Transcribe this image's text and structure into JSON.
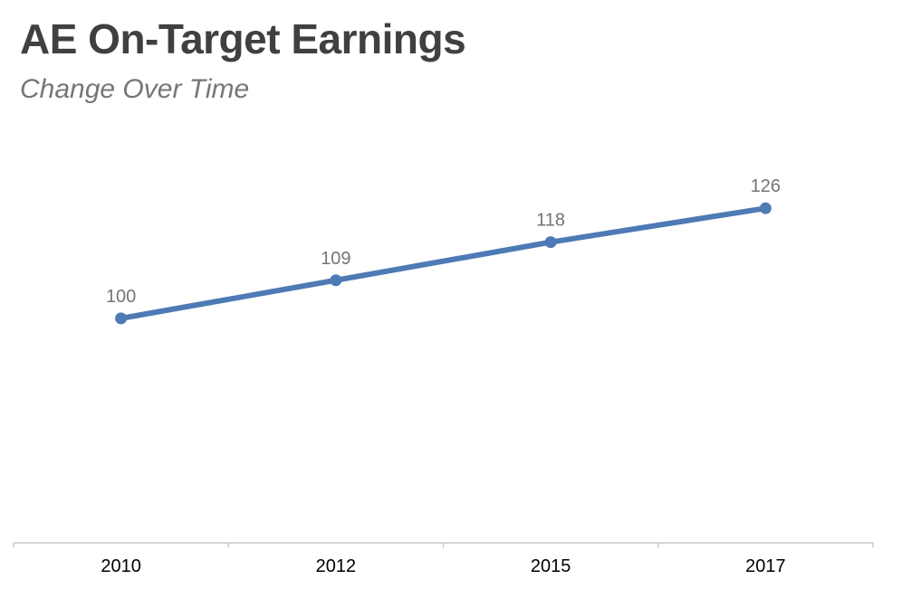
{
  "chart_data": {
    "type": "line",
    "title": "AE On-Target Earnings",
    "subtitle": "Change Over Time",
    "xlabel": "",
    "ylabel": "",
    "categories": [
      "2010",
      "2012",
      "2015",
      "2017"
    ],
    "series": [
      {
        "values": [
          100,
          109,
          118,
          126
        ],
        "color": "#4e7ab5"
      }
    ],
    "ylim": [
      47,
      138
    ],
    "grid": false,
    "legend": "none",
    "data_labels": true,
    "axis_color": "#c8c8c8",
    "label_color": "#757575"
  }
}
